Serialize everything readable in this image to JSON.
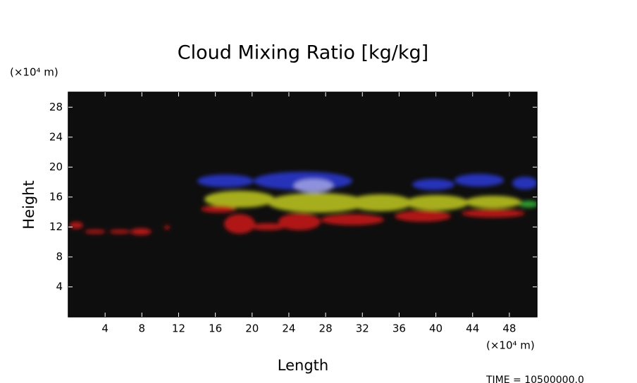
{
  "chart_data": {
    "type": "volume-render",
    "title": "Cloud Mixing Ratio [kg/kg]",
    "x_label": "Length",
    "y_label": "Height",
    "x_unit": "(×10⁴ m)",
    "y_unit": "(×10⁴ m)",
    "annotation": "TIME = 10500000.0",
    "xlim": [
      0,
      51
    ],
    "ylim": [
      0,
      30
    ],
    "xticks": [
      4,
      8,
      12,
      16,
      20,
      24,
      28,
      32,
      36,
      40,
      44,
      48
    ],
    "yticks": [
      4,
      8,
      12,
      16,
      20,
      24,
      28
    ],
    "background": "#0e0e0e"
  }
}
